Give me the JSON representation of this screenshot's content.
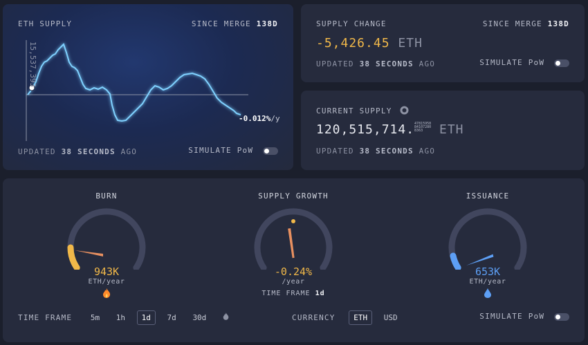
{
  "eth_supply": {
    "title": "ETH SUPPLY",
    "since_label": "SINCE MERGE",
    "since_value": "138d",
    "y_tick": "15,537,393",
    "end_rate": "-0.012%",
    "end_rate_unit": "/y",
    "updated_prefix": "UPDATED",
    "updated_value": "38 SECONDS",
    "updated_suffix": "AGO",
    "simulate_label": "SIMULATE PoW"
  },
  "supply_change": {
    "title": "SUPPLY CHANGE",
    "since_label": "SINCE MERGE",
    "since_value": "138d",
    "value": "-5,426.45",
    "unit": "ETH",
    "updated_prefix": "UPDATED",
    "updated_value": "38 SECONDS",
    "updated_suffix": "AGO",
    "simulate_label": "SIMULATE PoW"
  },
  "current_supply": {
    "title": "CURRENT SUPPLY",
    "value": "120,515,714.",
    "decimals_l1": "47815958",
    "decimals_l2": "84107280",
    "decimals_l3": "8363",
    "unit": "ETH",
    "updated_prefix": "UPDATED",
    "updated_value": "38 SECONDS",
    "updated_suffix": "AGO"
  },
  "gauges": {
    "burn": {
      "title": "BURN",
      "value": "943K",
      "unit": "ETH/year",
      "icon": "fire-icon",
      "color": "#f1b849",
      "level": 0.43
    },
    "growth": {
      "title": "SUPPLY GROWTH",
      "value": "-0.24%",
      "unit": "/year",
      "icon": "",
      "color": "#f1b849",
      "level": 0.49
    },
    "issuance": {
      "title": "ISSUANCE",
      "value": "653K",
      "unit": "ETH/year",
      "icon": "droplet-icon",
      "color": "#5d9ff5",
      "level": 0.44
    },
    "timeframe_label": "TIME FRAME",
    "timeframe_value": "1d"
  },
  "footer": {
    "timeframe_label": "TIME FRAME",
    "timeframes": [
      "5m",
      "1h",
      "1d",
      "7d",
      "30d"
    ],
    "active_timeframe": "1d",
    "currency_label": "CURRENCY",
    "currencies": [
      "ETH",
      "USD"
    ],
    "active_currency": "ETH",
    "simulate_label": "SIMULATE PoW"
  },
  "colors": {
    "orange": "#f1b849",
    "blue": "#5d9ff5",
    "chart_line": "#7fd1ff"
  }
}
